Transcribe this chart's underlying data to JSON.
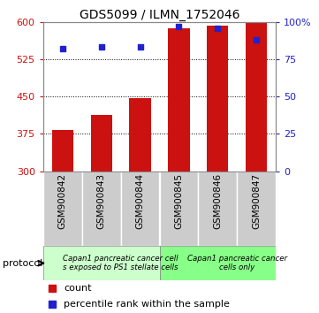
{
  "title": "GDS5099 / ILMN_1752046",
  "categories": [
    "GSM900842",
    "GSM900843",
    "GSM900844",
    "GSM900845",
    "GSM900846",
    "GSM900847"
  ],
  "counts": [
    383,
    413,
    447,
    588,
    592,
    597
  ],
  "percentiles": [
    82,
    83,
    83,
    97,
    96,
    88
  ],
  "ylim_left": [
    300,
    600
  ],
  "ylim_right": [
    0,
    100
  ],
  "yticks_left": [
    300,
    375,
    450,
    525,
    600
  ],
  "yticks_right": [
    0,
    25,
    50,
    75,
    100
  ],
  "bar_color": "#cc1111",
  "percentile_color": "#2222cc",
  "bar_width": 0.55,
  "protocol_groups": [
    {
      "label": "Capan1 pancreatic cancer cell\ns exposed to PS1 stellate cells",
      "start": 0,
      "end": 3,
      "color": "#ccffcc"
    },
    {
      "label": "Capan1 pancreatic cancer\ncells only",
      "start": 3,
      "end": 6,
      "color": "#88ff88"
    }
  ],
  "legend_count_label": "count",
  "legend_percentile_label": "percentile rank within the sample",
  "protocol_label": "protocol",
  "xticklabel_bg": "#cccccc",
  "grid_color": "#000000",
  "grid_linestyle": ":",
  "grid_linewidth": 0.7
}
